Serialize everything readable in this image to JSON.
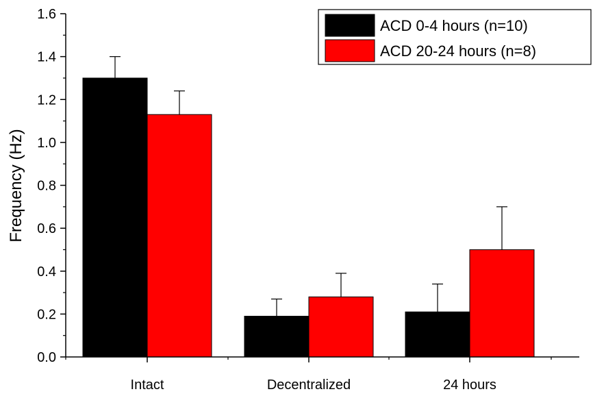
{
  "chart_data": {
    "type": "bar",
    "title": "",
    "xlabel": "",
    "ylabel": "Frequency (Hz)",
    "ylim": [
      0,
      1.6
    ],
    "yticks": [
      "0.0",
      "0.2",
      "0.4",
      "0.6",
      "0.8",
      "1.0",
      "1.2",
      "1.4",
      "1.6"
    ],
    "categories": [
      "Intact",
      "Decentralized",
      "24 hours"
    ],
    "series": [
      {
        "name": "ACD 0-4 hours (n=10)",
        "color": "#000000",
        "values": [
          1.3,
          0.19,
          0.21
        ],
        "error": [
          0.1,
          0.08,
          0.13
        ]
      },
      {
        "name": "ACD 20-24 hours (n=8)",
        "color": "#ff0000",
        "values": [
          1.13,
          0.28,
          0.5
        ],
        "error": [
          0.11,
          0.11,
          0.2
        ]
      }
    ],
    "grid": false,
    "legend_position": "top-right",
    "error_bars": "upper"
  }
}
